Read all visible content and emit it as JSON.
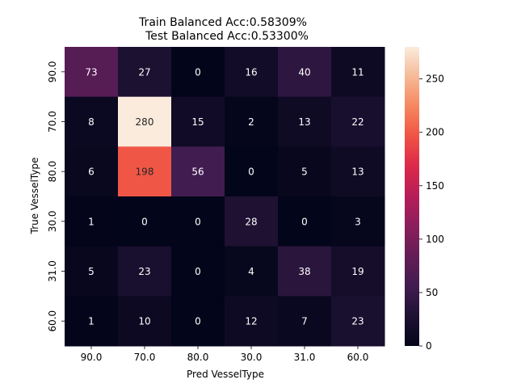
{
  "chart_data": {
    "type": "heatmap",
    "title_lines": [
      "Train Balanced Acc:0.58309%",
      "Test Balanced Acc:0.53300%"
    ],
    "xlabel": "Pred VesselType",
    "ylabel": "True VesselType",
    "x_categories": [
      "90.0",
      "70.0",
      "80.0",
      "30.0",
      "31.0",
      "60.0"
    ],
    "y_categories": [
      "90.0",
      "70.0",
      "80.0",
      "30.0",
      "31.0",
      "60.0"
    ],
    "values": [
      [
        73,
        27,
        0,
        16,
        40,
        11
      ],
      [
        8,
        280,
        15,
        2,
        13,
        22
      ],
      [
        6,
        198,
        56,
        0,
        5,
        13
      ],
      [
        1,
        0,
        0,
        28,
        0,
        3
      ],
      [
        5,
        23,
        0,
        4,
        38,
        19
      ],
      [
        1,
        10,
        0,
        12,
        7,
        23
      ]
    ],
    "colorbar": {
      "min": 0,
      "max": 280,
      "ticks": [
        0,
        50,
        100,
        150,
        200,
        250
      ],
      "colormap": "rocket"
    }
  }
}
